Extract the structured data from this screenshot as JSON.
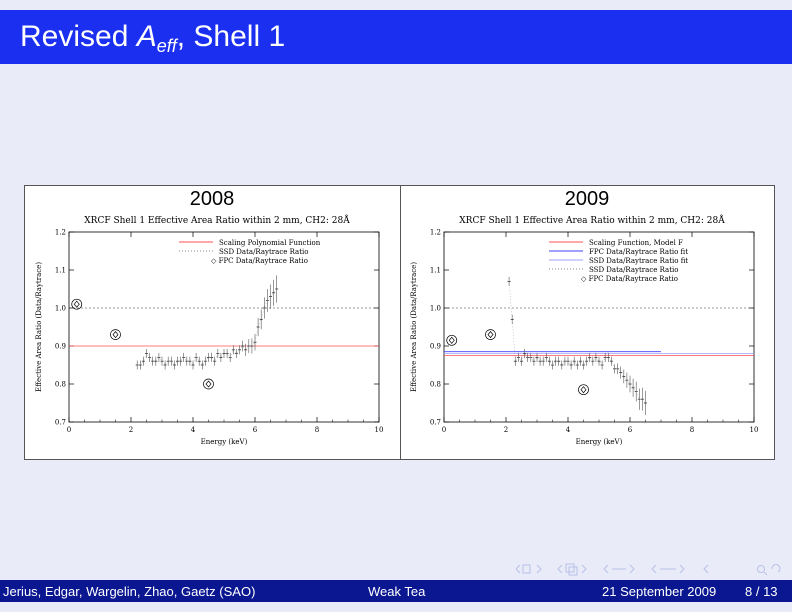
{
  "slide": {
    "title_prefix": "Revised ",
    "title_symbol": "A",
    "title_subscript": "eff",
    "title_suffix": ", Shell 1"
  },
  "panels": [
    {
      "year": "2008",
      "plot_title": "XRCF Shell 1 Effective Area Ratio within 2 mm, CH2: 28Å",
      "legend": [
        "Scaling Polynomial Function",
        "SSD Data/Raytrace Ratio",
        "◇ FPC Data/Raytrace Ratio"
      ]
    },
    {
      "year": "2009",
      "plot_title": "XRCF Shell 1 Effective Area Ratio within 2 mm, CH2: 28Å",
      "legend": [
        "Scaling Function, Model F",
        "FPC Data/Raytrace Ratio fit",
        "SSD Data/Raytrace Ratio fit",
        "SSD Data/Raytrace Ratio",
        "◇ FPC Data/Raytrace Ratio"
      ]
    }
  ],
  "chart_data": [
    {
      "type": "scatter",
      "title": "XRCF Shell 1 Effective Area Ratio within 2 mm, CH2: 28Å",
      "xlabel": "Energy (keV)",
      "ylabel": "Effective Area Ratio (Data/Raytrace)",
      "xlim": [
        0,
        10
      ],
      "ylim": [
        0.7,
        1.2
      ],
      "xticks": [
        "0",
        "2",
        "4",
        "6",
        "8",
        "10"
      ],
      "yticks": [
        "0.7",
        "0.8",
        "0.9",
        "1.0",
        "1.1",
        "1.2"
      ],
      "reference_line": 1.0,
      "series": [
        {
          "name": "Scaling Polynomial Function",
          "color": "#ff5050",
          "x": [
            0,
            10
          ],
          "y": [
            0.9,
            0.9
          ]
        },
        {
          "name": "SSD Data/Raytrace Ratio",
          "x": [
            2.2,
            2.3,
            2.4,
            2.5,
            2.6,
            2.7,
            2.8,
            2.9,
            3.0,
            3.1,
            3.2,
            3.3,
            3.4,
            3.5,
            3.6,
            3.7,
            3.8,
            3.9,
            4.0,
            4.1,
            4.2,
            4.3,
            4.4,
            4.5,
            4.6,
            4.7,
            4.8,
            4.9,
            5.0,
            5.1,
            5.2,
            5.3,
            5.4,
            5.5,
            5.6,
            5.7,
            5.8,
            5.9,
            6.0,
            6.1,
            6.2,
            6.3,
            6.4,
            6.5,
            6.6,
            6.7
          ],
          "y": [
            0.85,
            0.85,
            0.86,
            0.88,
            0.87,
            0.86,
            0.86,
            0.87,
            0.86,
            0.85,
            0.86,
            0.86,
            0.85,
            0.86,
            0.86,
            0.87,
            0.86,
            0.86,
            0.85,
            0.87,
            0.86,
            0.85,
            0.86,
            0.87,
            0.87,
            0.86,
            0.88,
            0.87,
            0.88,
            0.88,
            0.87,
            0.89,
            0.88,
            0.89,
            0.9,
            0.89,
            0.9,
            0.9,
            0.91,
            0.95,
            0.97,
            1.0,
            1.02,
            1.03,
            1.04,
            1.05
          ]
        },
        {
          "name": "FPC Data/Raytrace Ratio",
          "x": [
            0.25,
            1.5,
            4.5
          ],
          "y": [
            1.01,
            0.93,
            0.8
          ]
        }
      ]
    },
    {
      "type": "scatter",
      "title": "XRCF Shell 1 Effective Area Ratio within 2 mm, CH2: 28Å",
      "xlabel": "Energy (keV)",
      "ylabel": "Effective Area Ratio (Data/Raytrace)",
      "xlim": [
        0,
        10
      ],
      "ylim": [
        0.7,
        1.2
      ],
      "xticks": [
        "0",
        "2",
        "4",
        "6",
        "8",
        "10"
      ],
      "yticks": [
        "0.7",
        "0.8",
        "0.9",
        "1.0",
        "1.1",
        "1.2"
      ],
      "reference_line": 1.0,
      "series": [
        {
          "name": "Scaling Function, Model F",
          "color": "#ff5050",
          "x": [
            0,
            10
          ],
          "y": [
            0.875,
            0.875
          ]
        },
        {
          "name": "FPC Data/Raytrace Ratio fit",
          "color": "#4040ff",
          "x": [
            0,
            7
          ],
          "y": [
            0.885,
            0.885
          ]
        },
        {
          "name": "SSD Data/Raytrace Ratio fit",
          "color": "#a0a0ff",
          "x": [
            0,
            10
          ],
          "y": [
            0.88,
            0.88
          ]
        },
        {
          "name": "SSD Data/Raytrace Ratio",
          "x": [
            2.1,
            2.2,
            2.3,
            2.4,
            2.5,
            2.6,
            2.7,
            2.8,
            2.9,
            3.0,
            3.1,
            3.2,
            3.3,
            3.4,
            3.5,
            3.6,
            3.7,
            3.8,
            3.9,
            4.0,
            4.1,
            4.2,
            4.3,
            4.4,
            4.5,
            4.6,
            4.7,
            4.8,
            4.9,
            5.0,
            5.1,
            5.2,
            5.3,
            5.4,
            5.5,
            5.6,
            5.7,
            5.8,
            5.9,
            6.0,
            6.1,
            6.2,
            6.3,
            6.4,
            6.5
          ],
          "y": [
            1.07,
            0.97,
            0.86,
            0.87,
            0.86,
            0.88,
            0.87,
            0.87,
            0.86,
            0.87,
            0.86,
            0.86,
            0.87,
            0.86,
            0.85,
            0.86,
            0.86,
            0.85,
            0.86,
            0.86,
            0.85,
            0.86,
            0.85,
            0.86,
            0.85,
            0.86,
            0.87,
            0.86,
            0.87,
            0.86,
            0.85,
            0.87,
            0.87,
            0.86,
            0.84,
            0.84,
            0.83,
            0.82,
            0.81,
            0.8,
            0.79,
            0.78,
            0.76,
            0.76,
            0.75
          ]
        },
        {
          "name": "FPC Data/Raytrace Ratio",
          "x": [
            0.25,
            1.5,
            4.5
          ],
          "y": [
            0.915,
            0.93,
            0.785
          ]
        }
      ]
    }
  ],
  "footer": {
    "authors": "Jerius, Edgar, Wargelin, Zhao, Gaetz (SAO)",
    "talk": "Weak Tea",
    "date": "21 September 2009",
    "page": "8 / 13"
  }
}
